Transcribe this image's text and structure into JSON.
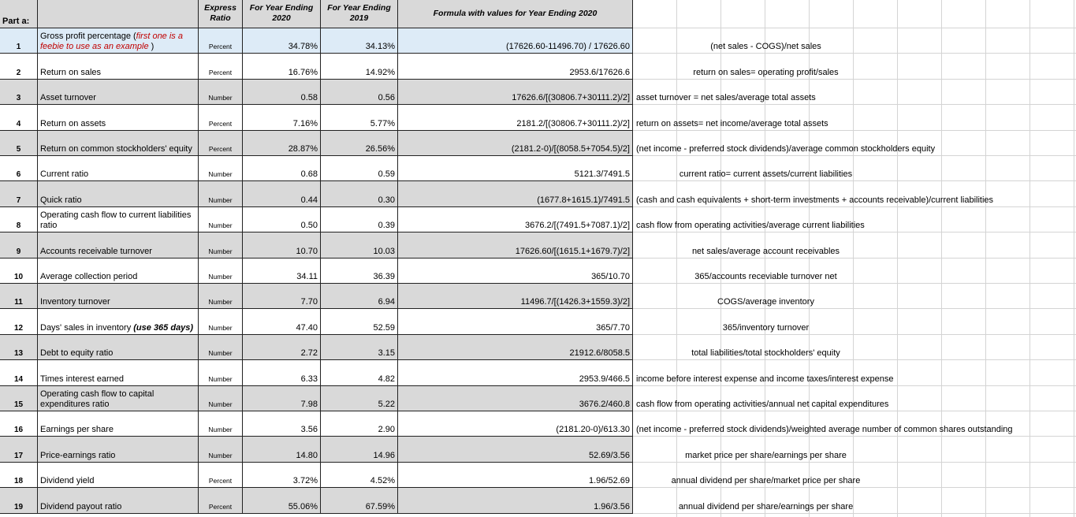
{
  "header": {
    "part": "Part a:",
    "type": "Express Ratio",
    "year_2020": "For Year Ending 2020",
    "year_2019": "For Year Ending 2019",
    "formula": "Formula with values for Year Ending 2020"
  },
  "rows": [
    {
      "number": "1",
      "name": "Gross profit percentage (",
      "emphasis": "first one is a feebie to use as an example",
      "name_end": " )",
      "type": "Percent",
      "y2020": "34.78%",
      "y2019": "34.13%",
      "formula": "(17626.60-11496.70) / 17626.60",
      "note": "(net sales - COGS)/net sales"
    },
    {
      "number": "2",
      "name": "Return on sales",
      "type": "Percent",
      "y2020": "16.76%",
      "y2019": "14.92%",
      "formula": "2953.6/17626.6",
      "note": "return on sales= operating profit/sales"
    },
    {
      "number": "3",
      "name": "Asset turnover",
      "type": "Number",
      "y2020": "0.58",
      "y2019": "0.56",
      "formula": "17626.6/[(30806.7+30111.2)/2]",
      "note": "asset turnover = net sales/average total assets"
    },
    {
      "number": "4",
      "name": "Return on assets",
      "type": "Percent",
      "y2020": "7.16%",
      "y2019": "5.77%",
      "formula": "2181.2/[(30806.7+30111.2)/2]",
      "note": "return on assets= net income/average total assets"
    },
    {
      "number": "5",
      "name": "Return on common stockholders' equity",
      "type": "Percent",
      "y2020": "28.87%",
      "y2019": "26.56%",
      "formula": "(2181.2-0)/[(8058.5+7054.5)/2]",
      "note": "(net income - preferred stock dividends)/average common stockholders equity"
    },
    {
      "number": "6",
      "name": "Current ratio",
      "type": "Number",
      "y2020": "0.68",
      "y2019": "0.59",
      "formula": "5121.3/7491.5",
      "note": "current ratio= current assets/current liabilities"
    },
    {
      "number": "7",
      "name": "Quick ratio",
      "type": "Number",
      "y2020": "0.44",
      "y2019": "0.30",
      "formula": "(1677.8+1615.1)/7491.5",
      "note": "(cash and cash equivalents + short-term investments + accounts receivable)/current liabilities"
    },
    {
      "number": "8",
      "name": "Operating cash flow to current liabilities ratio",
      "type": "Number",
      "y2020": "0.50",
      "y2019": "0.39",
      "formula": "3676.2/[(7491.5+7087.1)/2]",
      "note": "cash flow from operating activities/average current liabilities"
    },
    {
      "number": "9",
      "name": "Accounts receivable turnover",
      "type": "Number",
      "y2020": "10.70",
      "y2019": "10.03",
      "formula": "17626.60/[(1615.1+1679.7)/2]",
      "note": "net sales/average account receivables"
    },
    {
      "number": "10",
      "name": "Average collection period",
      "type": "Number",
      "y2020": "34.11",
      "y2019": "36.39",
      "formula": "365/10.70",
      "note": "365/accounts receviable turnover net"
    },
    {
      "number": "11",
      "name": "Inventory turnover",
      "type": "Number",
      "y2020": "7.70",
      "y2019": "6.94",
      "formula": "11496.7/[(1426.3+1559.3)/2]",
      "note": "COGS/average inventory"
    },
    {
      "number": "12",
      "name": "Days' sales in inventory ",
      "bold_emphasis": "(use 365 days)",
      "type": "Number",
      "y2020": "47.40",
      "y2019": "52.59",
      "formula": "365/7.70",
      "note": "365/inventory turnover"
    },
    {
      "number": "13",
      "name": "Debt to equity ratio",
      "type": "Number",
      "y2020": "2.72",
      "y2019": "3.15",
      "formula": "21912.6/8058.5",
      "note": "total liabilities/total stockholders' equity"
    },
    {
      "number": "14",
      "name": "Times interest earned",
      "type": "Number",
      "y2020": "6.33",
      "y2019": "4.82",
      "formula": "2953.9/466.5",
      "note": "income before interest expense and income taxes/interest expense"
    },
    {
      "number": "15",
      "name": "Operating cash flow to capital expenditures ratio",
      "type": "Number",
      "y2020": "7.98",
      "y2019": "5.22",
      "formula": "3676.2/460.8",
      "note": "cash flow from operating activities/annual net capital expenditures"
    },
    {
      "number": "16",
      "name": "Earnings per share",
      "type": "Number",
      "y2020": "3.56",
      "y2019": "2.90",
      "formula": "(2181.20-0)/613.30",
      "note": "(net income - preferred stock dividends)/weighted average number of common shares outstanding"
    },
    {
      "number": "17",
      "name": "Price-earnings ratio",
      "type": "Number",
      "y2020": "14.80",
      "y2019": "14.96",
      "formula": "52.69/3.56",
      "note": "market price per share/earnings per share"
    },
    {
      "number": "18",
      "name": "Dividend yield",
      "type": "Percent",
      "y2020": "3.72%",
      "y2019": "4.52%",
      "formula": "1.96/52.69",
      "note": "annual dividend per share/market price per share"
    },
    {
      "number": "19",
      "name": "Dividend payout ratio",
      "type": "Percent",
      "y2020": "55.06%",
      "y2019": "67.59%",
      "formula": "1.96/3.56",
      "note": "annual dividend per share/earnings per share"
    }
  ]
}
